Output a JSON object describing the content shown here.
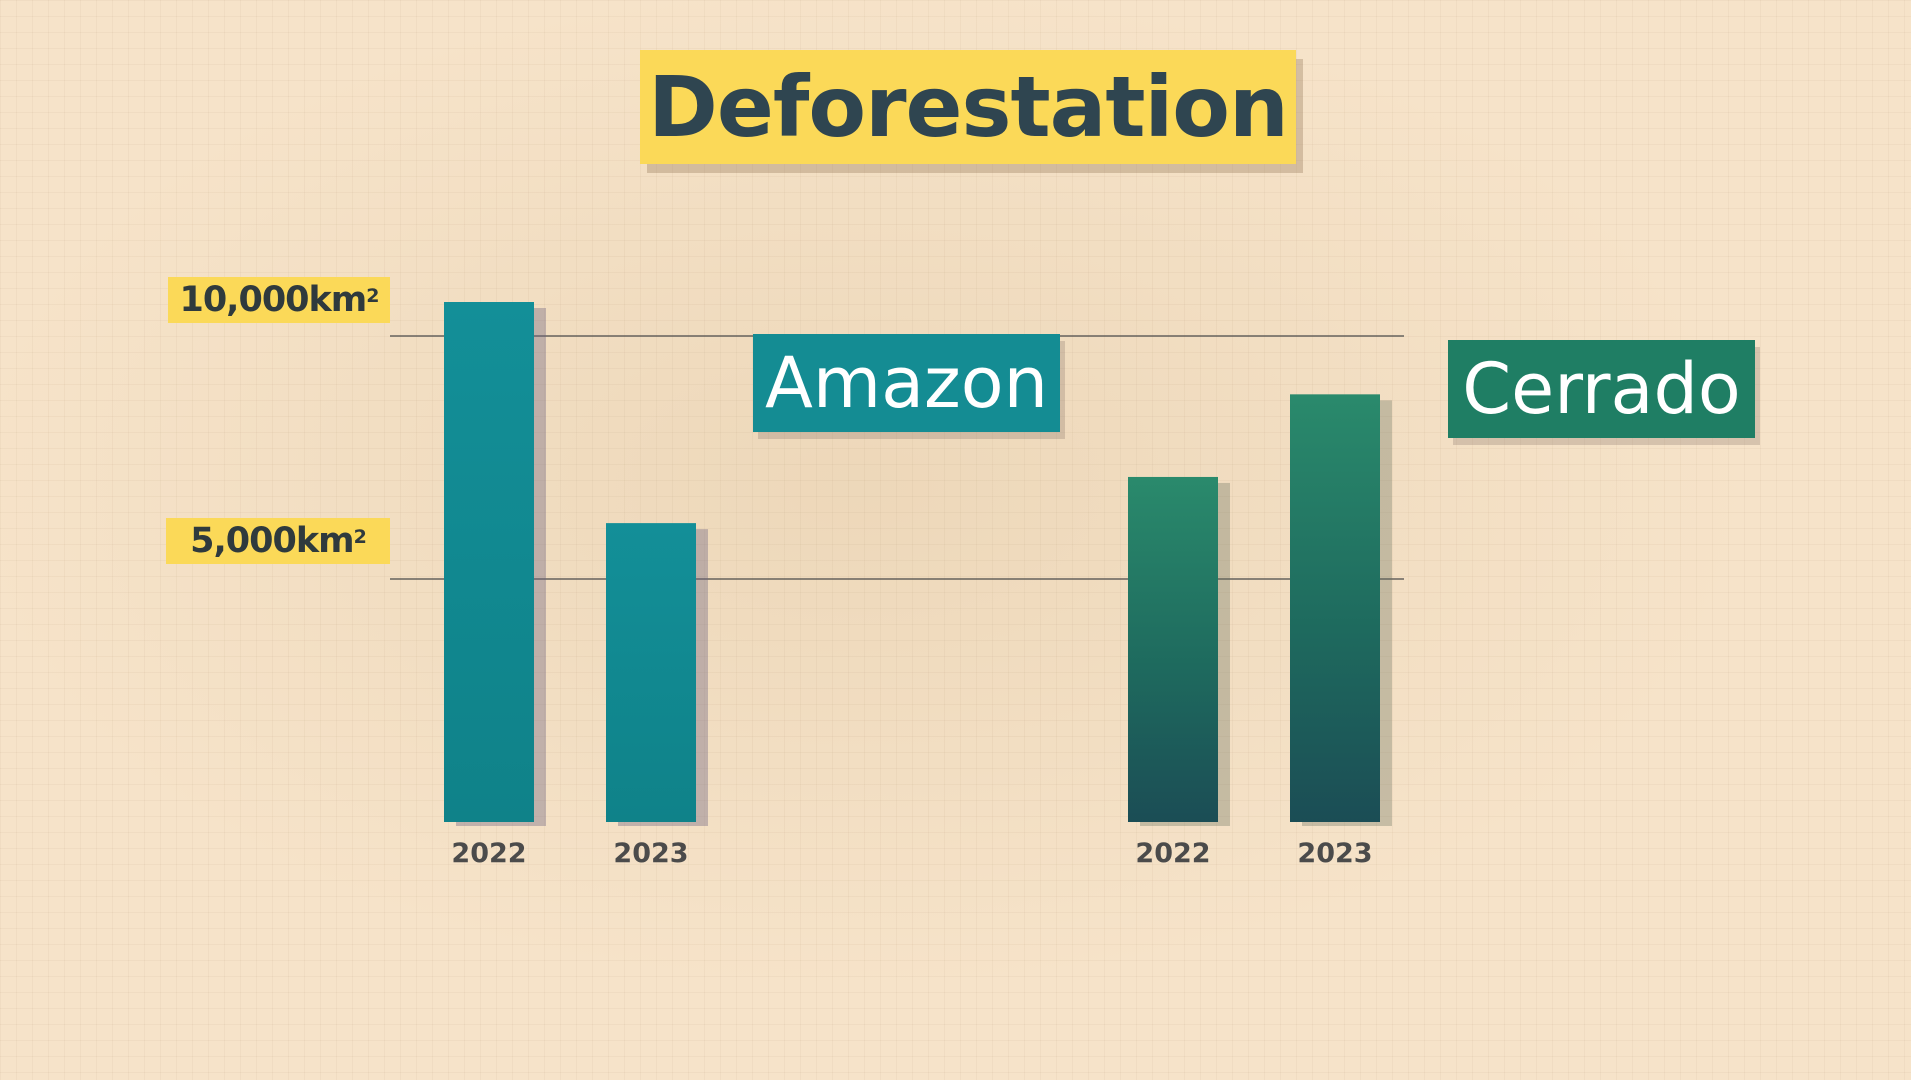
{
  "chart_data": {
    "type": "bar",
    "title": "Deforestation",
    "yticks": [
      {
        "value": 5000,
        "label": "5,000km",
        "sup": "2"
      },
      {
        "value": 10000,
        "label": "10,000km",
        "sup": "2"
      }
    ],
    "groups": [
      {
        "name": "Amazon",
        "color": "#148c93",
        "bars": [
          {
            "category": "2022",
            "value": 10700
          },
          {
            "category": "2023",
            "value": 6150
          }
        ]
      },
      {
        "name": "Cerrado",
        "color": "#1f7e64",
        "bars": [
          {
            "category": "2022",
            "value": 7100
          },
          {
            "category": "2023",
            "value": 8800
          }
        ]
      }
    ],
    "ylim": [
      0,
      10700
    ],
    "grid": false,
    "legend": "none"
  }
}
